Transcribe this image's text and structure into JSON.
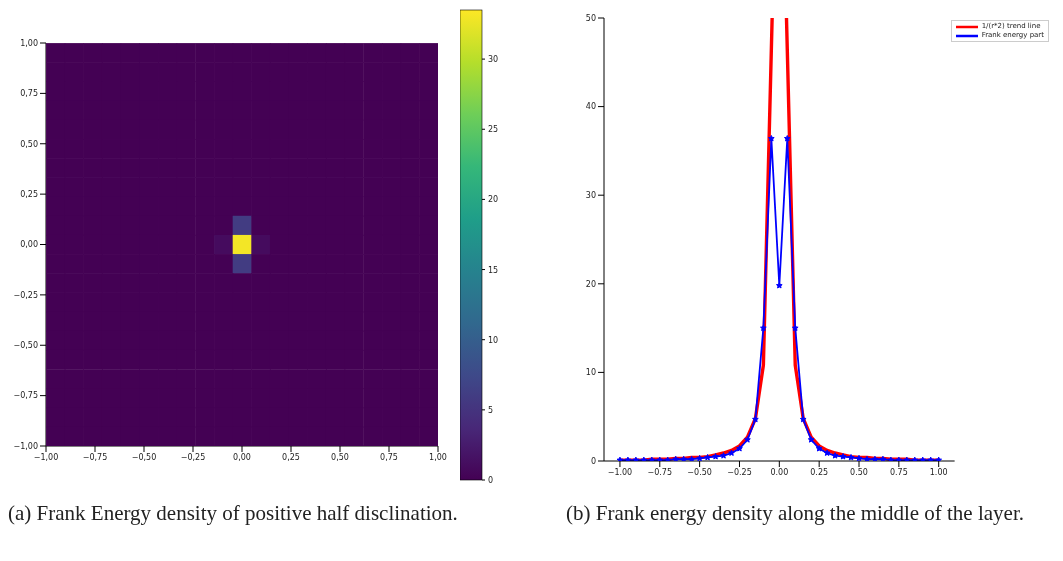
{
  "chart_data": [
    {
      "type": "heatmap",
      "annotations": [
        "(a) Frank Energy density of positive half disclination."
      ],
      "x": [
        -0.952,
        -0.857,
        -0.762,
        -0.667,
        -0.571,
        -0.476,
        -0.381,
        -0.286,
        -0.19,
        -0.095,
        0,
        0.095,
        0.19,
        0.286,
        0.381,
        0.476,
        0.571,
        0.667,
        0.762,
        0.857,
        0.952
      ],
      "y": [
        0.952,
        0.857,
        0.762,
        0.667,
        0.571,
        0.476,
        0.381,
        0.286,
        0.19,
        0.095,
        0,
        -0.095,
        -0.19,
        -0.286,
        -0.381,
        -0.476,
        -0.571,
        -0.667,
        -0.762,
        -0.857,
        -0.952
      ],
      "xlim": [
        -1,
        1
      ],
      "ylim": [
        -1,
        1
      ],
      "xticks": [
        {
          "value": -1,
          "label": "−1,00"
        },
        {
          "value": -0.75,
          "label": "−0,75"
        },
        {
          "value": -0.5,
          "label": "−0,50"
        },
        {
          "value": -0.25,
          "label": "−0,25"
        },
        {
          "value": 0,
          "label": "0,00"
        },
        {
          "value": 0.25,
          "label": "0,25"
        },
        {
          "value": 0.5,
          "label": "0,50"
        },
        {
          "value": 0.75,
          "label": "0,75"
        },
        {
          "value": 1,
          "label": "1,00"
        }
      ],
      "yticks": [
        {
          "value": -1,
          "label": "−1,00"
        },
        {
          "value": -0.75,
          "label": "−0,75"
        },
        {
          "value": -0.5,
          "label": "−0,50"
        },
        {
          "value": -0.25,
          "label": "−0,25"
        },
        {
          "value": 0,
          "label": "0,00"
        },
        {
          "value": 0.25,
          "label": "0,25"
        },
        {
          "value": 0.5,
          "label": "0,50"
        },
        {
          "value": 0.75,
          "label": "0,75"
        },
        {
          "value": 1,
          "label": "1,00"
        }
      ],
      "clim": [
        0,
        33.5
      ],
      "cticks": [
        0,
        5,
        10,
        15,
        20,
        25,
        30
      ],
      "cells": [
        [
          0,
          0,
          0,
          0,
          0,
          0,
          0,
          0,
          0,
          0,
          0,
          0,
          0,
          0,
          0,
          0,
          0,
          0,
          0,
          0,
          0
        ],
        [
          0,
          0,
          0,
          0,
          0,
          0,
          0,
          0,
          0,
          0,
          0,
          0,
          0,
          0,
          0,
          0,
          0,
          0,
          0,
          0,
          0
        ],
        [
          0,
          0,
          0,
          0,
          0,
          0,
          0,
          0,
          0,
          0,
          0,
          0,
          0,
          0,
          0,
          0,
          0,
          0,
          0,
          0,
          0
        ],
        [
          0,
          0,
          0,
          0,
          0,
          0,
          0,
          0,
          0,
          0,
          0,
          0,
          0,
          0,
          0,
          0,
          0,
          0,
          0,
          0,
          0
        ],
        [
          0,
          0,
          0,
          0,
          0,
          0,
          0,
          0,
          0,
          0,
          0,
          0,
          0,
          0,
          0,
          0,
          0,
          0,
          0,
          0,
          0
        ],
        [
          0,
          0,
          0,
          0,
          0,
          0,
          0,
          0,
          0,
          0,
          0,
          0,
          0,
          0,
          0,
          0,
          0,
          0,
          0,
          0,
          0
        ],
        [
          0,
          0,
          0,
          0,
          0,
          0,
          0,
          0,
          0,
          0,
          0,
          0,
          0,
          0,
          0,
          0,
          0,
          0,
          0,
          0,
          0
        ],
        [
          0,
          0,
          0,
          0,
          0,
          0,
          0,
          0,
          0,
          0,
          0,
          0,
          0,
          0,
          0,
          0,
          0,
          0,
          0,
          0,
          0
        ],
        [
          0,
          0,
          0,
          0,
          0,
          0,
          0,
          0,
          0,
          0,
          0,
          0,
          0,
          0,
          0,
          0,
          0,
          0,
          0,
          0,
          0
        ],
        [
          0,
          0,
          0,
          0,
          0,
          0,
          0,
          0,
          0,
          0,
          6,
          0,
          0,
          0,
          0,
          0,
          0,
          0,
          0,
          0,
          0
        ],
        [
          0,
          0,
          0,
          0,
          0,
          0,
          0,
          0,
          0,
          1,
          33,
          1,
          0,
          0,
          0,
          0,
          0,
          0,
          0,
          0,
          0
        ],
        [
          0,
          0,
          0,
          0,
          0,
          0,
          0,
          0,
          0,
          0,
          6,
          0,
          0,
          0,
          0,
          0,
          0,
          0,
          0,
          0,
          0
        ],
        [
          0,
          0,
          0,
          0,
          0,
          0,
          0,
          0,
          0,
          0,
          0,
          0,
          0,
          0,
          0,
          0,
          0,
          0,
          0,
          0,
          0
        ],
        [
          0,
          0,
          0,
          0,
          0,
          0,
          0,
          0,
          0,
          0,
          0,
          0,
          0,
          0,
          0,
          0,
          0,
          0,
          0,
          0,
          0
        ],
        [
          0,
          0,
          0,
          0,
          0,
          0,
          0,
          0,
          0,
          0,
          0,
          0,
          0,
          0,
          0,
          0,
          0,
          0,
          0,
          0,
          0
        ],
        [
          0,
          0,
          0,
          0,
          0,
          0,
          0,
          0,
          0,
          0,
          0,
          0,
          0,
          0,
          0,
          0,
          0,
          0,
          0,
          0,
          0
        ],
        [
          0,
          0,
          0,
          0,
          0,
          0,
          0,
          0,
          0,
          0,
          0,
          0,
          0,
          0,
          0,
          0,
          0,
          0,
          0,
          0,
          0
        ],
        [
          0,
          0,
          0,
          0,
          0,
          0,
          0,
          0,
          0,
          0,
          0,
          0,
          0,
          0,
          0,
          0,
          0,
          0,
          0,
          0,
          0
        ],
        [
          0,
          0,
          0,
          0,
          0,
          0,
          0,
          0,
          0,
          0,
          0,
          0,
          0,
          0,
          0,
          0,
          0,
          0,
          0,
          0,
          0
        ],
        [
          0,
          0,
          0,
          0,
          0,
          0,
          0,
          0,
          0,
          0,
          0,
          0,
          0,
          0,
          0,
          0,
          0,
          0,
          0,
          0,
          0
        ],
        [
          0,
          0,
          0,
          0,
          0,
          0,
          0,
          0,
          0,
          0,
          0,
          0,
          0,
          0,
          0,
          0,
          0,
          0,
          0,
          0,
          0
        ]
      ]
    },
    {
      "type": "line",
      "annotations": [
        "(b) Frank energy density along the middle of the layer."
      ],
      "x": [
        -1,
        -0.95,
        -0.9,
        -0.85,
        -0.8,
        -0.75,
        -0.7,
        -0.65,
        -0.6,
        -0.55,
        -0.5,
        -0.45,
        -0.4,
        -0.35,
        -0.3,
        -0.25,
        -0.2,
        -0.15,
        -0.1,
        -0.05,
        0,
        0.05,
        0.1,
        0.15,
        0.2,
        0.25,
        0.3,
        0.35,
        0.4,
        0.45,
        0.5,
        0.55,
        0.6,
        0.65,
        0.7,
        0.75,
        0.8,
        0.85,
        0.9,
        0.95,
        1
      ],
      "xlim": [
        -1.1,
        1.1
      ],
      "ylim": [
        0,
        50
      ],
      "xticks": [
        {
          "value": -1,
          "label": "−1.00"
        },
        {
          "value": -0.75,
          "label": "−0.75"
        },
        {
          "value": -0.5,
          "label": "−0.50"
        },
        {
          "value": -0.25,
          "label": "−0.25"
        },
        {
          "value": 0,
          "label": "0.00"
        },
        {
          "value": 0.25,
          "label": "0.25"
        },
        {
          "value": 0.5,
          "label": "0.50"
        },
        {
          "value": 0.75,
          "label": "0.75"
        },
        {
          "value": 1,
          "label": "1.00"
        }
      ],
      "yticks": [
        0,
        10,
        20,
        30,
        40,
        50
      ],
      "grid": false,
      "legend": "top right",
      "line_style": "solid",
      "series": [
        {
          "name": "1/(r*2) trend line",
          "color": "#ff0000",
          "marker": "none",
          "x": [
            -1,
            -0.95,
            -0.9,
            -0.85,
            -0.8,
            -0.75,
            -0.7,
            -0.65,
            -0.6,
            -0.55,
            -0.5,
            -0.45,
            -0.4,
            -0.35,
            -0.3,
            -0.25,
            -0.2,
            -0.15,
            -0.1,
            -0.045,
            0,
            0.045,
            0.1,
            0.15,
            0.2,
            0.25,
            0.3,
            0.35,
            0.4,
            0.45,
            0.5,
            0.55,
            0.6,
            0.65,
            0.7,
            0.75,
            0.8,
            0.85,
            0.9,
            0.95,
            1
          ],
          "values": [
            0.1,
            0.1,
            0.1,
            0.1,
            0.2,
            0.2,
            0.2,
            0.3,
            0.3,
            0.4,
            0.4,
            0.5,
            0.7,
            0.9,
            1.2,
            1.7,
            2.7,
            4.8,
            10.8,
            50,
            null,
            50,
            10.8,
            4.8,
            2.7,
            1.7,
            1.2,
            0.9,
            0.7,
            0.5,
            0.4,
            0.4,
            0.3,
            0.3,
            0.2,
            0.2,
            0.2,
            0.1,
            0.1,
            0.1,
            0.1
          ]
        },
        {
          "name": "Frank energy part",
          "color": "#0000ff",
          "marker": "star",
          "values": [
            0.1,
            0.1,
            0.1,
            0.1,
            0.1,
            0.1,
            0.1,
            0.2,
            0.2,
            0.2,
            0.3,
            0.4,
            0.5,
            0.6,
            0.9,
            1.4,
            2.4,
            4.7,
            15,
            36.4,
            19.8,
            36.4,
            15,
            4.7,
            2.4,
            1.4,
            0.9,
            0.6,
            0.5,
            0.4,
            0.3,
            0.2,
            0.2,
            0.2,
            0.1,
            0.1,
            0.1,
            0.1,
            0.1,
            0.1,
            0.1
          ]
        }
      ]
    }
  ]
}
